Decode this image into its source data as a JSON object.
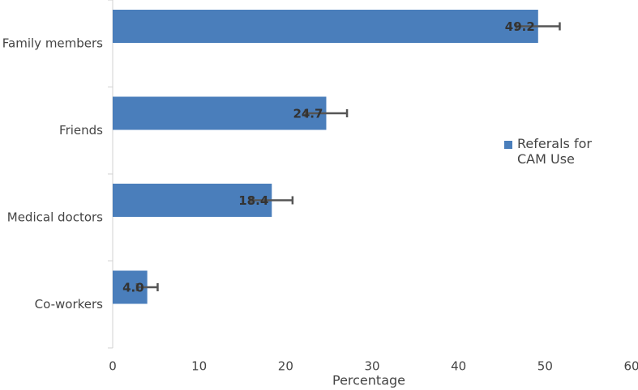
{
  "chart_data": {
    "type": "barh",
    "categories": [
      "Family members",
      "Friends",
      "Medical doctors",
      "Co-workers"
    ],
    "series": [
      {
        "name": "Referals for CAM Use",
        "color": "#4a7ebb",
        "values": [
          49.2,
          24.7,
          18.4,
          4
        ],
        "value_labels": [
          "49.2",
          "24.7",
          "18.4",
          "4.0"
        ],
        "errors": [
          2.5,
          2.4,
          2.4,
          1.2
        ]
      }
    ],
    "xlabel": "Percentage",
    "xlim": [
      0,
      60
    ],
    "xticks": [
      0,
      10,
      20,
      30,
      40,
      50,
      60
    ],
    "grid": false,
    "legend": "right"
  }
}
